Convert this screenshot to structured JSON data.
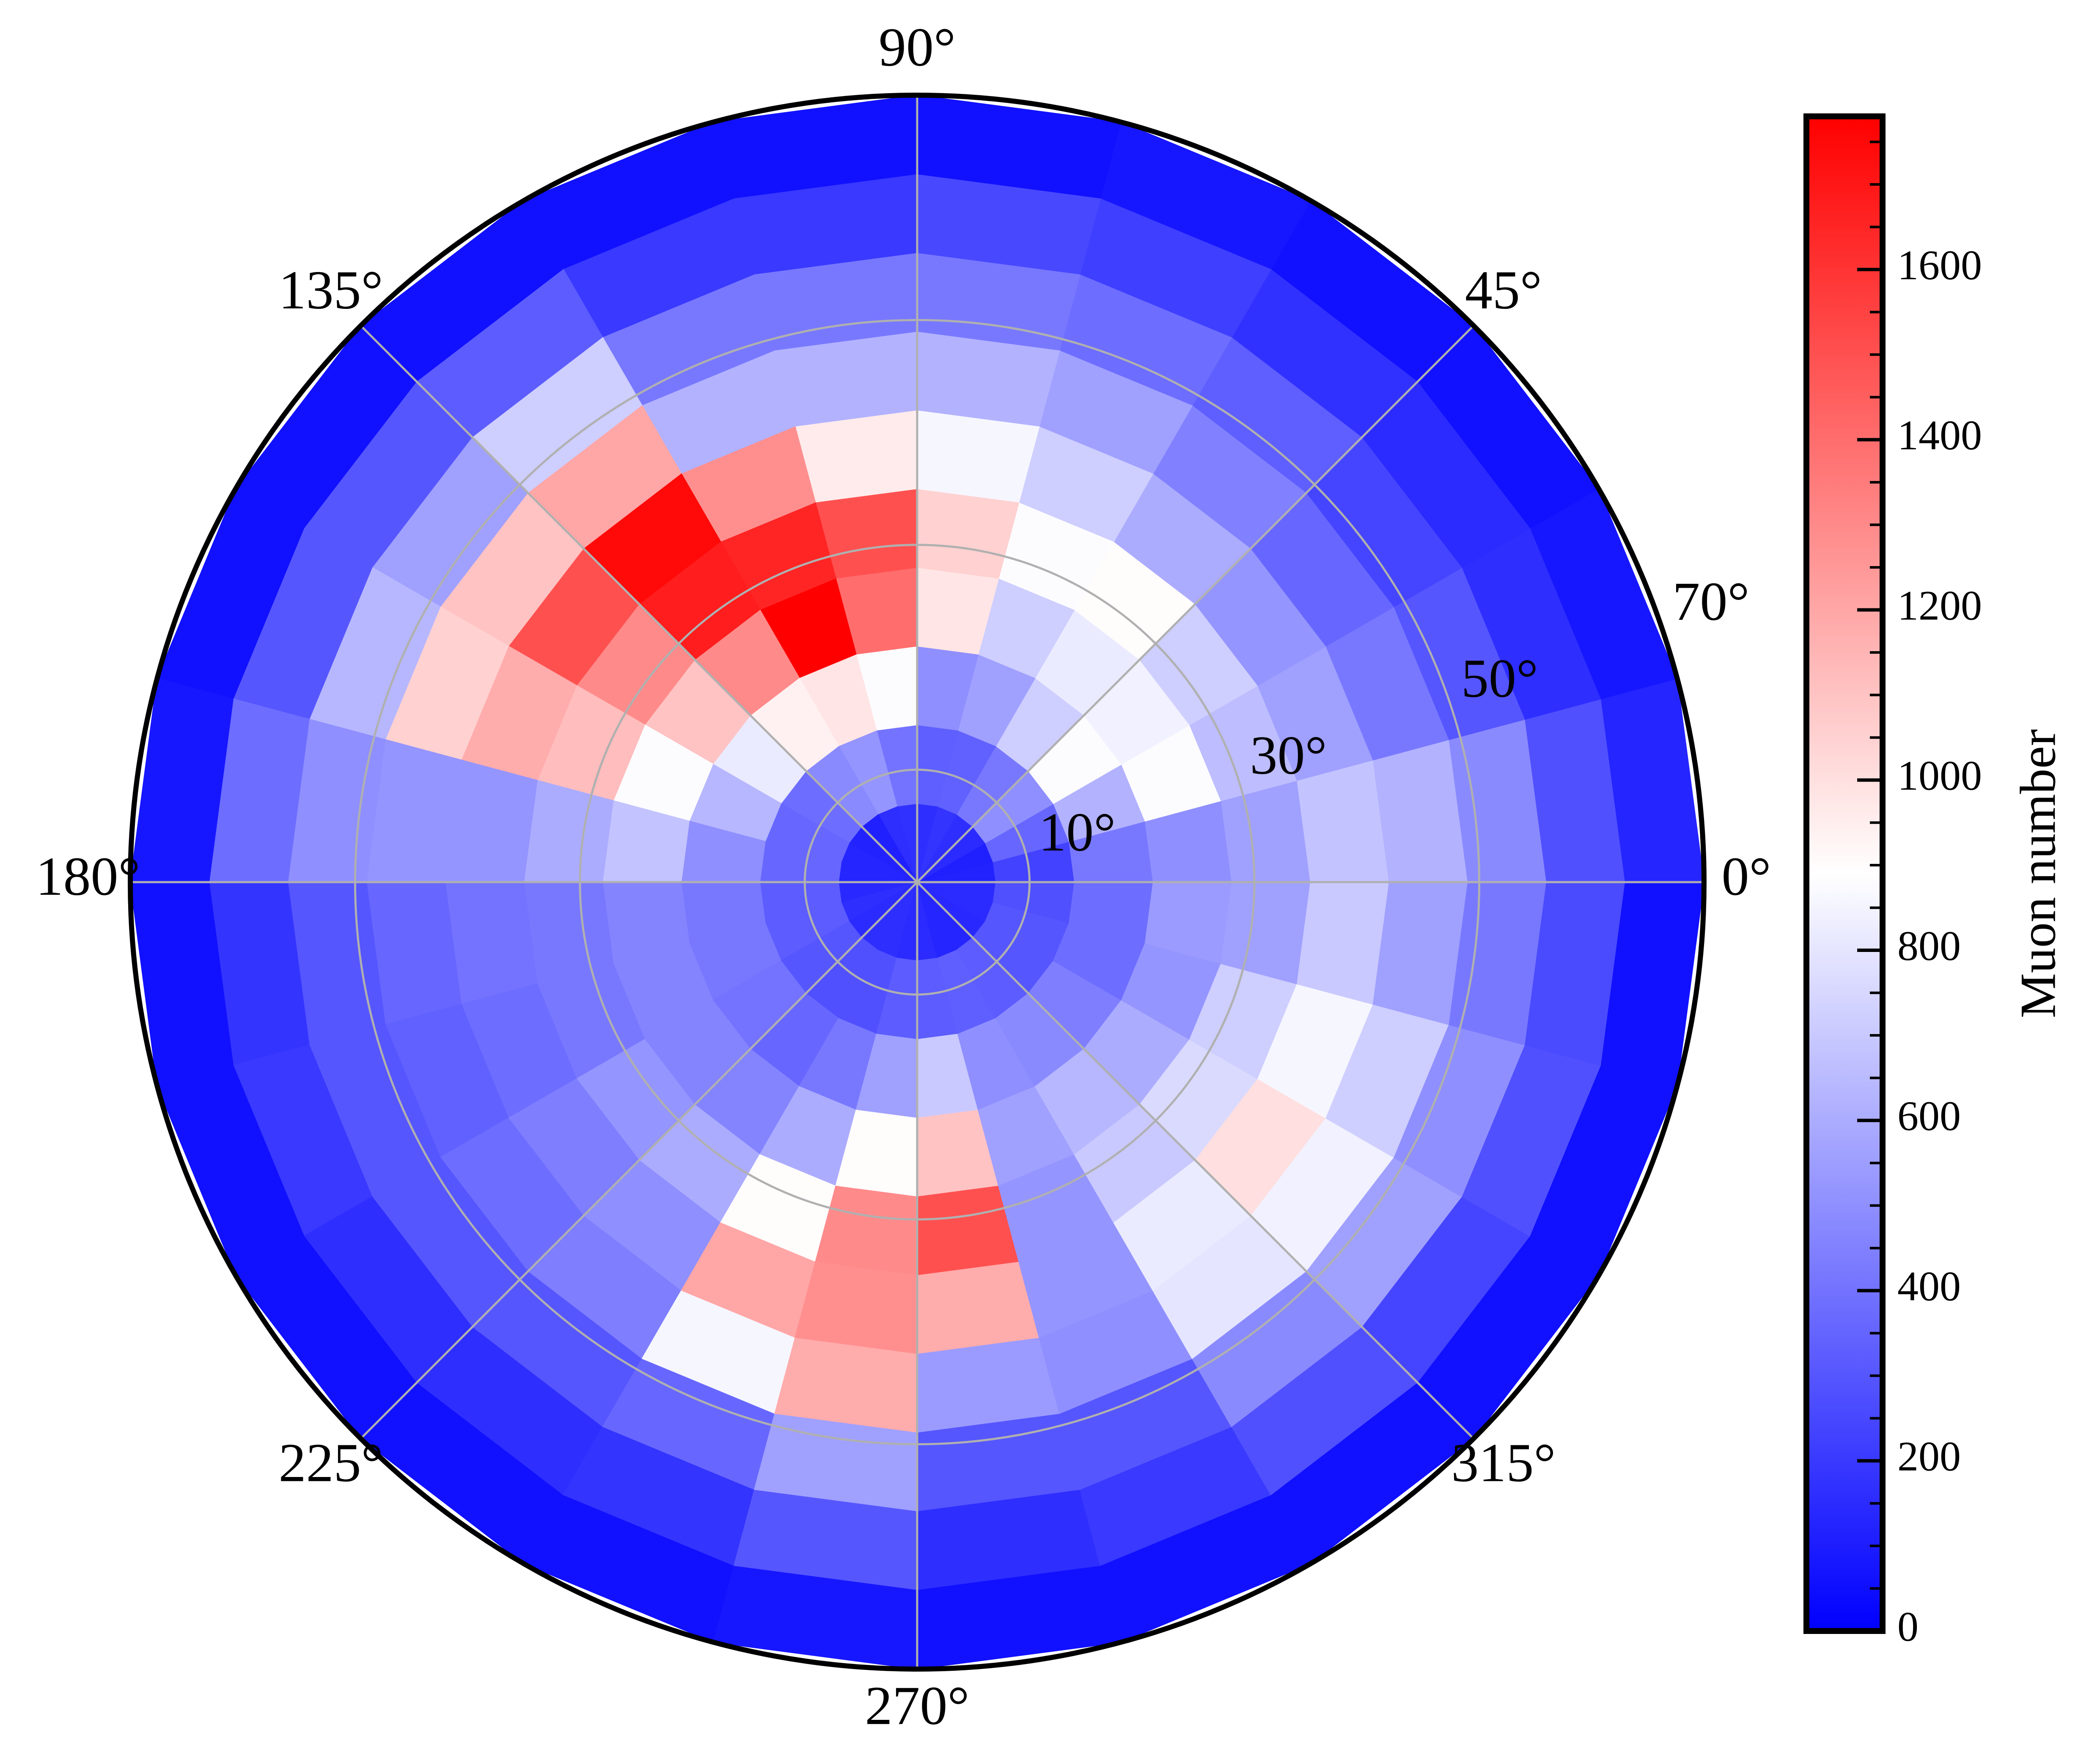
{
  "chart_data": {
    "type": "heatmap",
    "projection": "polar",
    "angle_ticks": [
      "0°",
      "45°",
      "90°",
      "135°",
      "180°",
      "225°",
      "270°",
      "315°"
    ],
    "angle_tick_values_deg": [
      0,
      45,
      90,
      135,
      180,
      225,
      270,
      315
    ],
    "radial_ticks": [
      "10°",
      "30°",
      "50°",
      "70°"
    ],
    "radial_tick_values": [
      10,
      30,
      50,
      70
    ],
    "r_range": [
      0,
      70
    ],
    "grid": true,
    "theta_bin_edges_deg": [
      0,
      15,
      30,
      45,
      60,
      75,
      90,
      105,
      120,
      135,
      150,
      165,
      180,
      195,
      210,
      225,
      240,
      255,
      270,
      285,
      300,
      315,
      330,
      345,
      360
    ],
    "r_bin_edges": [
      0,
      7,
      14,
      21,
      28,
      35,
      42,
      49,
      56,
      63,
      70
    ],
    "counts": [
      [
        120,
        230,
        420,
        500,
        560,
        680,
        620,
        480,
        280,
        130
      ],
      [
        110,
        360,
        620,
        880,
        660,
        560,
        420,
        300,
        160,
        80
      ],
      [
        150,
        500,
        880,
        840,
        720,
        520,
        360,
        240,
        150,
        60
      ],
      [
        160,
        420,
        720,
        820,
        900,
        600,
        450,
        330,
        170,
        60
      ],
      [
        180,
        340,
        560,
        720,
        880,
        720,
        560,
        380,
        220,
        80
      ],
      [
        160,
        330,
        500,
        980,
        1050,
        860,
        620,
        420,
        250,
        60
      ],
      [
        170,
        400,
        880,
        1400,
        1500,
        960,
        620,
        420,
        200,
        60
      ],
      [
        160,
        520,
        980,
        1800,
        1650,
        1280,
        620,
        420,
        200,
        60
      ],
      [
        110,
        480,
        940,
        1300,
        1680,
        1750,
        1200,
        720,
        320,
        60
      ],
      [
        120,
        380,
        820,
        1100,
        1300,
        1500,
        1100,
        560,
        300,
        60
      ],
      [
        130,
        360,
        640,
        880,
        1120,
        1180,
        1050,
        640,
        300,
        60
      ],
      [
        130,
        360,
        500,
        680,
        600,
        520,
        520,
        500,
        380,
        80
      ],
      [
        140,
        320,
        420,
        460,
        420,
        400,
        360,
        300,
        180,
        60
      ],
      [
        160,
        320,
        420,
        460,
        420,
        380,
        340,
        300,
        200,
        60
      ],
      [
        150,
        300,
        400,
        460,
        520,
        440,
        380,
        300,
        160,
        60
      ],
      [
        160,
        280,
        360,
        460,
        600,
        500,
        440,
        300,
        160,
        60
      ],
      [
        160,
        280,
        420,
        600,
        900,
        1200,
        860,
        360,
        180,
        60
      ],
      [
        150,
        320,
        560,
        900,
        1300,
        1280,
        1180,
        560,
        300,
        80
      ],
      [
        150,
        320,
        700,
        1100,
        1500,
        1180,
        540,
        300,
        160,
        60
      ],
      [
        130,
        330,
        500,
        560,
        520,
        520,
        500,
        300,
        200,
        60
      ],
      [
        130,
        320,
        480,
        640,
        700,
        820,
        800,
        480,
        280,
        60
      ],
      [
        140,
        300,
        440,
        600,
        760,
        1000,
        840,
        560,
        240,
        60
      ],
      [
        150,
        300,
        380,
        520,
        720,
        860,
        720,
        500,
        280,
        60
      ],
      [
        150,
        280,
        380,
        540,
        560,
        700,
        560,
        420,
        260,
        60
      ]
    ],
    "colorbar": {
      "label": "Muon number",
      "range": [
        0,
        1780
      ],
      "ticks": [
        0,
        200,
        400,
        600,
        800,
        1000,
        1200,
        1400,
        1600
      ],
      "tick_labels": [
        "0",
        "200",
        "400",
        "600",
        "800",
        "1000",
        "1200",
        "1400",
        "1600"
      ],
      "colormap": "bwr",
      "colors": [
        "#0000ff",
        "#ffffff",
        "#ff0000"
      ]
    }
  }
}
